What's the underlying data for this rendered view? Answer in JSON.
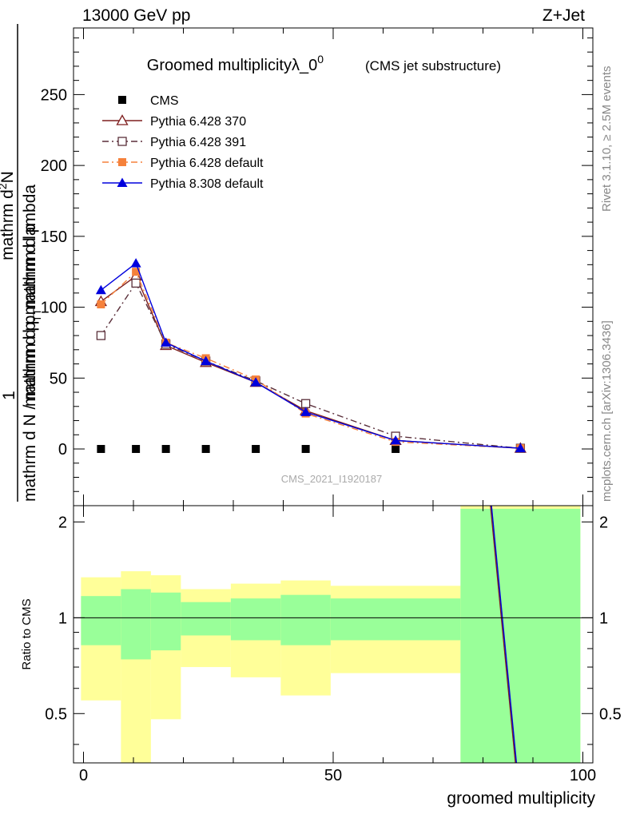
{
  "header": {
    "left": "13000 GeV pp",
    "right": "Z+Jet"
  },
  "side_labels": {
    "rivet": "Rivet 3.1.10, ≥ 2.5M events",
    "mcplots": "mcplots.cern.ch [arXiv:1306.3436]"
  },
  "watermark": "CMS_2021_I1920187",
  "chart_data": [
    {
      "type": "line",
      "panel": "main",
      "title": "Groomed multiplicityλ_0",
      "title_sup": "0",
      "subtitle": "(CMS jet substructure)",
      "ylabel_num": "1",
      "ylabel_mid": "mathrm d N / mathrm d p",
      "ylabel_mid_sub": "T",
      "ylabel_mid_tail": "mathrm d p",
      "ylabel_right_sub": "T",
      "ylabel_right_tail": "mathrm d N",
      "ylabel_top": "mathrm d",
      "ylabel_top_sup": "2",
      "ylabel_top_tail": "N",
      "ylabel_den_lead": "mathrm d p",
      "ylabel_den_sub": "T",
      "ylabel_den_tail": "mathrm d lambda",
      "xlim": [
        -2,
        102
      ],
      "ylim": [
        -40,
        297
      ],
      "yticks": [
        0,
        50,
        100,
        150,
        200,
        250
      ],
      "xticks": [
        0,
        50,
        100
      ],
      "legend_position": "top-left",
      "series": [
        {
          "name": "CMS",
          "color": "#000000",
          "marker": "square-filled",
          "line": "none",
          "x": [
            3.5,
            10.5,
            16.5,
            24.5,
            34.5,
            44.5,
            62.5
          ],
          "y": [
            0,
            0,
            0,
            0,
            0,
            0,
            0
          ]
        },
        {
          "name": "Pythia 6.428 370",
          "color": "#7f1f1f",
          "marker": "triangle-open",
          "line": "solid",
          "x": [
            3.5,
            10.5,
            16.5,
            24.5,
            34.5,
            44.5,
            62.5,
            87.5
          ],
          "y": [
            104,
            122,
            73,
            61,
            47,
            27,
            6,
            0.5
          ]
        },
        {
          "name": "Pythia 6.428 391",
          "color": "#5a2f3a",
          "marker": "square-open",
          "line": "dashdot",
          "x": [
            3.5,
            10.5,
            16.5,
            24.5,
            34.5,
            44.5,
            62.5,
            87.5
          ],
          "y": [
            80,
            117,
            74,
            62,
            48,
            32,
            9,
            0.5
          ]
        },
        {
          "name": "Pythia 6.428 default",
          "color": "#f5813b",
          "marker": "square-filled",
          "line": "dashdot",
          "x": [
            3.5,
            10.5,
            16.5,
            24.5,
            34.5,
            44.5,
            62.5,
            87.5
          ],
          "y": [
            102,
            125,
            75,
            64,
            49,
            25,
            5,
            0.5
          ]
        },
        {
          "name": "Pythia 8.308 default",
          "color": "#0000dd",
          "marker": "triangle-filled",
          "line": "solid",
          "x": [
            3.5,
            10.5,
            16.5,
            24.5,
            34.5,
            44.5,
            62.5,
            87.5
          ],
          "y": [
            112,
            131,
            75,
            62,
            47,
            26,
            6,
            0.5
          ]
        }
      ]
    },
    {
      "type": "area",
      "panel": "ratio",
      "ylabel": "Ratio to CMS",
      "xlabel": "groomed multiplicity",
      "xlim": [
        -2,
        102
      ],
      "ylim": [
        0.35,
        2.25
      ],
      "yticks": [
        0.5,
        1,
        2
      ],
      "ytick_labels": [
        "0.5",
        "1",
        "2"
      ],
      "xticks": [
        0,
        50,
        100
      ],
      "bands": [
        {
          "x0": -0.5,
          "x1": 7.5,
          "inner": [
            0.82,
            1.17
          ],
          "outer": [
            0.55,
            1.34
          ]
        },
        {
          "x0": 7.5,
          "x1": 13.5,
          "inner": [
            0.74,
            1.23
          ],
          "outer": [
            0.35,
            1.4
          ]
        },
        {
          "x0": 13.5,
          "x1": 19.5,
          "inner": [
            0.79,
            1.2
          ],
          "outer": [
            0.48,
            1.36
          ]
        },
        {
          "x0": 19.5,
          "x1": 29.5,
          "inner": [
            0.88,
            1.12
          ],
          "outer": [
            0.7,
            1.23
          ]
        },
        {
          "x0": 29.5,
          "x1": 39.5,
          "inner": [
            0.85,
            1.15
          ],
          "outer": [
            0.65,
            1.28
          ]
        },
        {
          "x0": 39.5,
          "x1": 49.5,
          "inner": [
            0.82,
            1.18
          ],
          "outer": [
            0.57,
            1.31
          ]
        },
        {
          "x0": 49.5,
          "x1": 75.5,
          "inner": [
            0.85,
            1.15
          ],
          "outer": [
            0.67,
            1.26
          ]
        },
        {
          "x0": 75.5,
          "x1": 99.5,
          "inner": [
            0.35,
            2.2
          ],
          "outer": [
            0.35,
            2.25
          ]
        }
      ],
      "ratio_lines": [
        {
          "color": "#7f1f1f",
          "x": [
            81.5,
            86.5
          ],
          "y": [
            2.25,
            0.35
          ]
        },
        {
          "color": "#0000dd",
          "x": [
            81.7,
            86.7
          ],
          "y": [
            2.25,
            0.35
          ]
        }
      ]
    }
  ]
}
